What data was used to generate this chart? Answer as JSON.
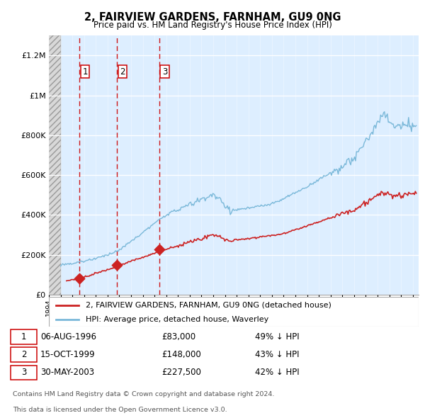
{
  "title": "2, FAIRVIEW GARDENS, FARNHAM, GU9 0NG",
  "subtitle": "Price paid vs. HM Land Registry's House Price Index (HPI)",
  "legend_line1": "2, FAIRVIEW GARDENS, FARNHAM, GU9 0NG (detached house)",
  "legend_line2": "HPI: Average price, detached house, Waverley",
  "footer1": "Contains HM Land Registry data © Crown copyright and database right 2024.",
  "footer2": "This data is licensed under the Open Government Licence v3.0.",
  "transactions": [
    {
      "num": 1,
      "date": "06-AUG-1996",
      "price": 83000,
      "pct": "49% ↓ HPI",
      "year": 1996.6
    },
    {
      "num": 2,
      "date": "15-OCT-1999",
      "price": 148000,
      "pct": "43% ↓ HPI",
      "year": 1999.8
    },
    {
      "num": 3,
      "date": "30-MAY-2003",
      "price": 227500,
      "pct": "42% ↓ HPI",
      "year": 2003.4
    }
  ],
  "hpi_line_color": "#7ab8d9",
  "price_line_color": "#cc2222",
  "vline_color": "#cc0000",
  "background_chart": "#ddeeff",
  "ylim": [
    0,
    1300000
  ],
  "yticks": [
    0,
    200000,
    400000,
    600000,
    800000,
    1000000,
    1200000
  ],
  "xlim_start": 1994.0,
  "xlim_end": 2025.5
}
